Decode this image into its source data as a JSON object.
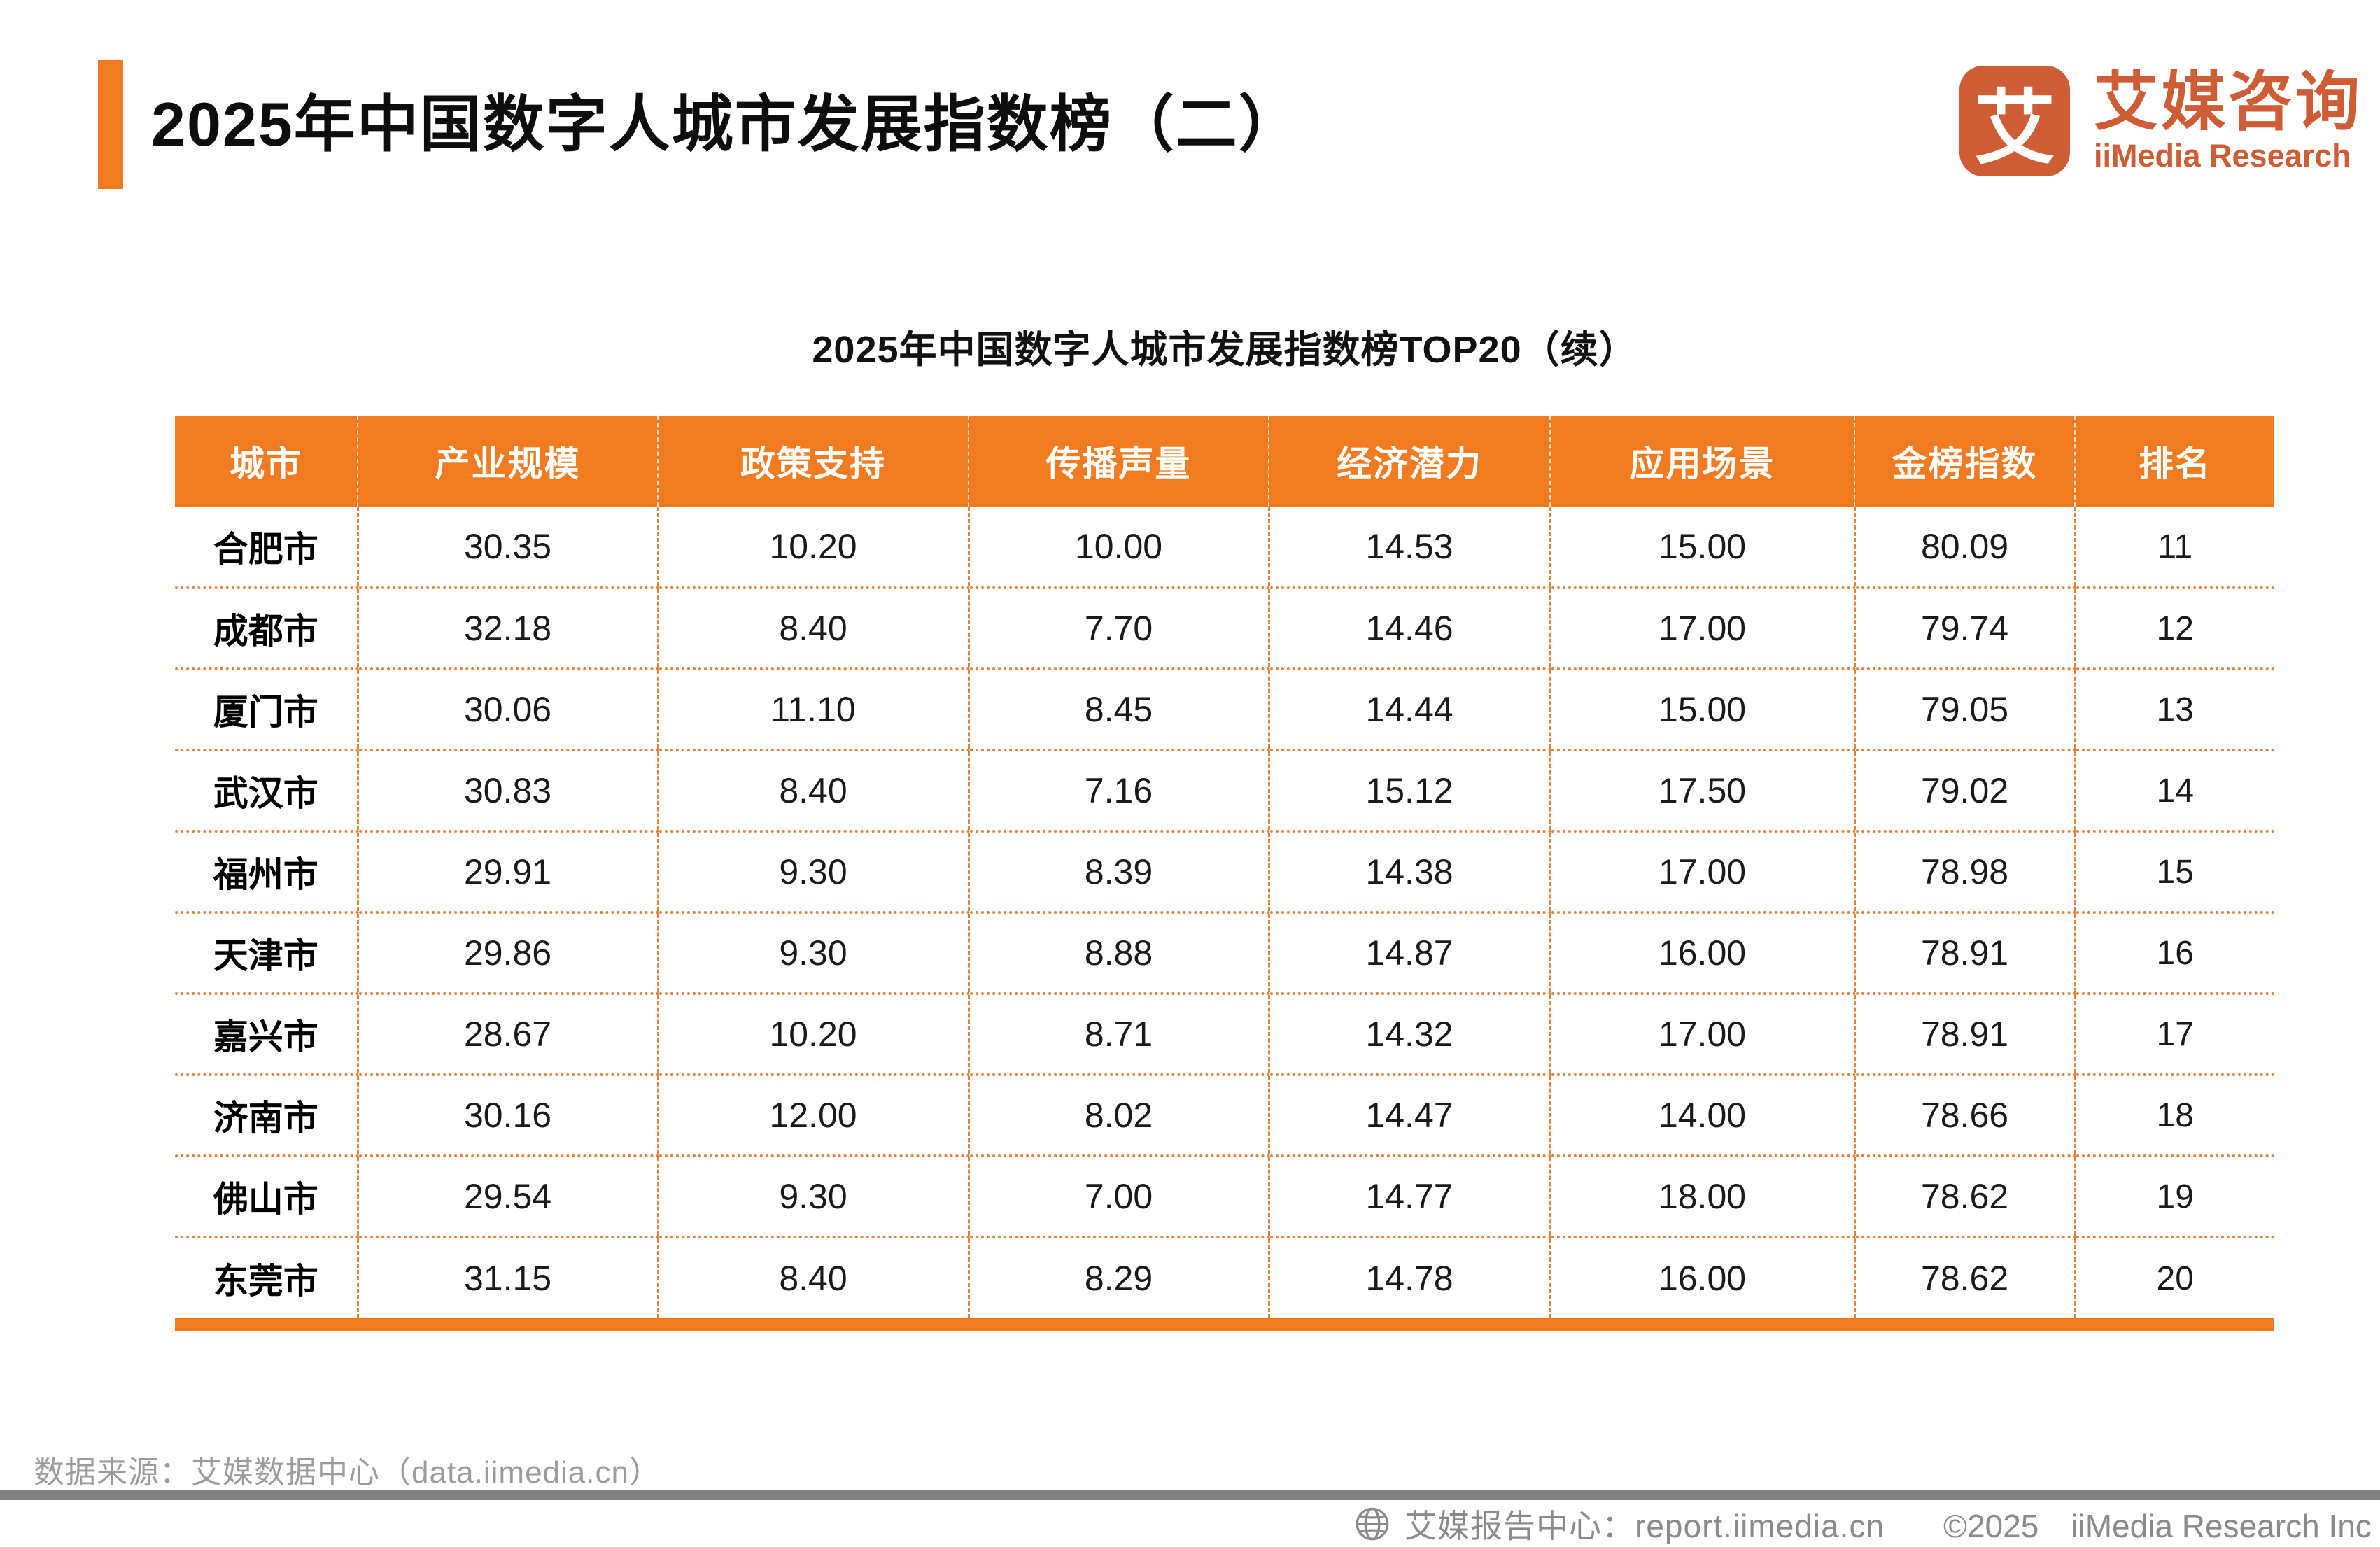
{
  "colors": {
    "accent_orange": "#F07B21",
    "logo_orange": "#CE5C35",
    "table_border_orange": "#E0813C",
    "footer_bar_gray": "#7F7F7F",
    "muted_text_gray": "#9B9B9B"
  },
  "header": {
    "title": "2025年中国数字人城市发展指数榜（二）"
  },
  "logo": {
    "mark": "艾",
    "name_cn": "艾媒咨询",
    "name_en": "iiMedia Research"
  },
  "table": {
    "subtitle": "2025年中国数字人城市发展指数榜TOP20（续）",
    "columns": [
      "城市",
      "产业规模",
      "政策支持",
      "传播声量",
      "经济潜力",
      "应用场景",
      "金榜指数",
      "排名"
    ],
    "rows": [
      {
        "city": "合肥市",
        "values": [
          "30.35",
          "10.20",
          "10.00",
          "14.53",
          "15.00",
          "80.09"
        ],
        "rank": "11"
      },
      {
        "city": "成都市",
        "values": [
          "32.18",
          "8.40",
          "7.70",
          "14.46",
          "17.00",
          "79.74"
        ],
        "rank": "12"
      },
      {
        "city": "厦门市",
        "values": [
          "30.06",
          "11.10",
          "8.45",
          "14.44",
          "15.00",
          "79.05"
        ],
        "rank": "13"
      },
      {
        "city": "武汉市",
        "values": [
          "30.83",
          "8.40",
          "7.16",
          "15.12",
          "17.50",
          "79.02"
        ],
        "rank": "14"
      },
      {
        "city": "福州市",
        "values": [
          "29.91",
          "9.30",
          "8.39",
          "14.38",
          "17.00",
          "78.98"
        ],
        "rank": "15"
      },
      {
        "city": "天津市",
        "values": [
          "29.86",
          "9.30",
          "8.88",
          "14.87",
          "16.00",
          "78.91"
        ],
        "rank": "16"
      },
      {
        "city": "嘉兴市",
        "values": [
          "28.67",
          "10.20",
          "8.71",
          "14.32",
          "17.00",
          "78.91"
        ],
        "rank": "17"
      },
      {
        "city": "济南市",
        "values": [
          "30.16",
          "12.00",
          "8.02",
          "14.47",
          "14.00",
          "78.66"
        ],
        "rank": "18"
      },
      {
        "city": "佛山市",
        "values": [
          "29.54",
          "9.30",
          "7.00",
          "14.77",
          "18.00",
          "78.62"
        ],
        "rank": "19"
      },
      {
        "city": "东莞市",
        "values": [
          "31.15",
          "8.40",
          "8.29",
          "14.78",
          "16.00",
          "78.62"
        ],
        "rank": "20"
      }
    ]
  },
  "chart_data": {
    "type": "table",
    "title": "2025年中国数字人城市发展指数榜TOP20（续）",
    "columns": [
      "城市",
      "产业规模",
      "政策支持",
      "传播声量",
      "经济潜力",
      "应用场景",
      "金榜指数",
      "排名"
    ],
    "rows": [
      [
        "合肥市",
        30.35,
        10.2,
        10.0,
        14.53,
        15.0,
        80.09,
        11
      ],
      [
        "成都市",
        32.18,
        8.4,
        7.7,
        14.46,
        17.0,
        79.74,
        12
      ],
      [
        "厦门市",
        30.06,
        11.1,
        8.45,
        14.44,
        15.0,
        79.05,
        13
      ],
      [
        "武汉市",
        30.83,
        8.4,
        7.16,
        15.12,
        17.5,
        79.02,
        14
      ],
      [
        "福州市",
        29.91,
        9.3,
        8.39,
        14.38,
        17.0,
        78.98,
        15
      ],
      [
        "天津市",
        29.86,
        9.3,
        8.88,
        14.87,
        16.0,
        78.91,
        16
      ],
      [
        "嘉兴市",
        28.67,
        10.2,
        8.71,
        14.32,
        17.0,
        78.91,
        17
      ],
      [
        "济南市",
        30.16,
        12.0,
        8.02,
        14.47,
        14.0,
        78.66,
        18
      ],
      [
        "佛山市",
        29.54,
        9.3,
        7.0,
        14.77,
        18.0,
        78.62,
        19
      ],
      [
        "东莞市",
        31.15,
        8.4,
        8.29,
        14.78,
        16.0,
        78.62,
        20
      ]
    ]
  },
  "footer": {
    "source": "数据来源：艾媒数据中心（data.iimedia.cn）",
    "report_center": "艾媒报告中心：report.iimedia.cn",
    "copyright": "©2025　iiMedia Research  Inc"
  }
}
